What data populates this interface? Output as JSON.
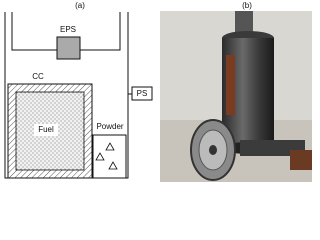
{
  "labels": {
    "a": "(a)",
    "b": "(b)"
  },
  "diagram": {
    "eps": "EPS",
    "cc": "CC",
    "ps": "PS",
    "fuel": "Fuel",
    "powder": "Powder"
  }
}
